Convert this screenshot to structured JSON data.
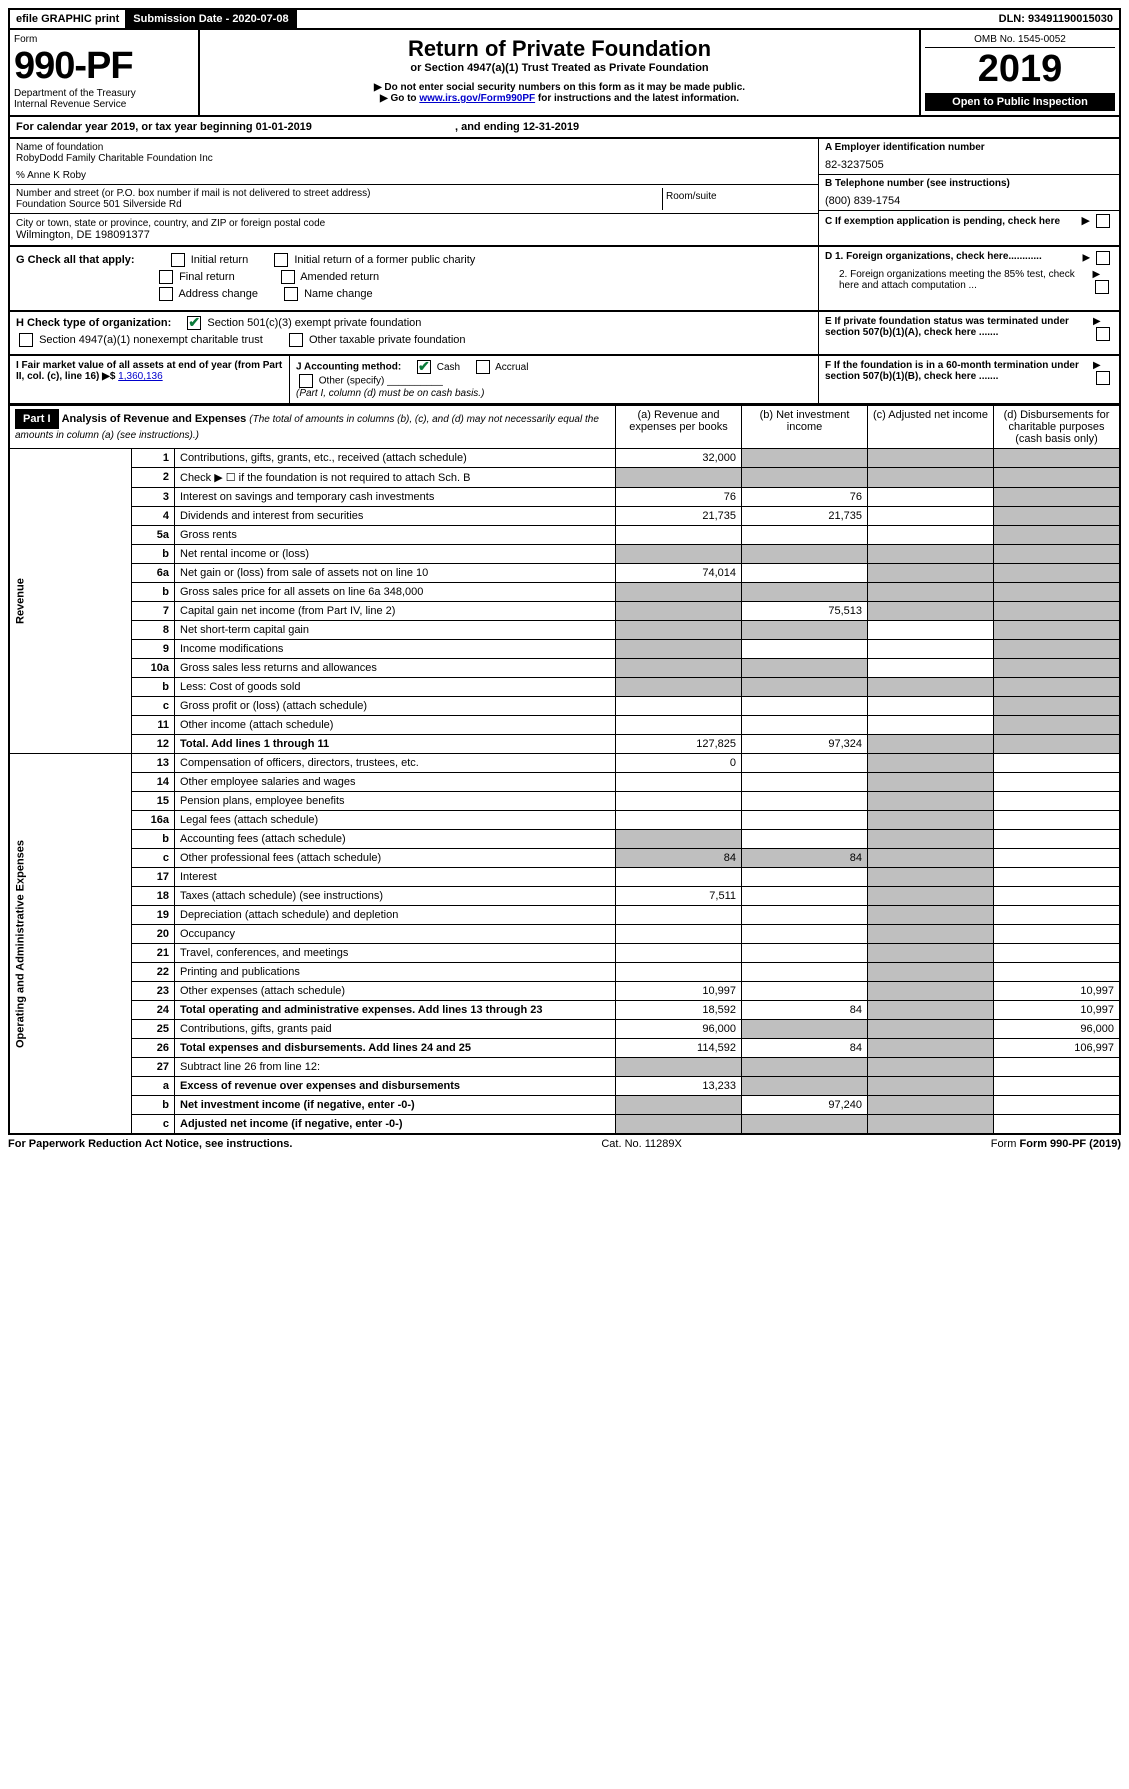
{
  "top": {
    "efile": "efile GRAPHIC print",
    "submission": "Submission Date - 2020-07-08",
    "dln": "DLN: 93491190015030"
  },
  "header": {
    "form": "Form",
    "form_no": "990-PF",
    "dept": "Department of the Treasury",
    "irs": "Internal Revenue Service",
    "title": "Return of Private Foundation",
    "subtitle": "or Section 4947(a)(1) Trust Treated as Private Foundation",
    "note1": "▶ Do not enter social security numbers on this form as it may be made public.",
    "note2": "▶ Go to ",
    "link": "www.irs.gov/Form990PF",
    "note2b": " for instructions and the latest information.",
    "omb": "OMB No. 1545-0052",
    "year": "2019",
    "open": "Open to Public Inspection"
  },
  "cal": {
    "text": "For calendar year 2019, or tax year beginning 01-01-2019",
    "end": ", and ending 12-31-2019"
  },
  "name": {
    "label": "Name of foundation",
    "value": "RobyDodd Family Charitable Foundation Inc",
    "care": "% Anne K Roby"
  },
  "addr": {
    "label": "Number and street (or P.O. box number if mail is not delivered to street address)",
    "value": "Foundation Source 501 Silverside Rd",
    "room": "Room/suite"
  },
  "city": {
    "label": "City or town, state or province, country, and ZIP or foreign postal code",
    "value": "Wilmington, DE  198091377"
  },
  "a": {
    "label": "A Employer identification number",
    "value": "82-3237505"
  },
  "b": {
    "label": "B Telephone number (see instructions)",
    "value": "(800) 839-1754"
  },
  "c": {
    "label": "C If exemption application is pending, check here"
  },
  "d1": {
    "label": "D 1. Foreign organizations, check here............"
  },
  "d2": {
    "label": "2. Foreign organizations meeting the 85% test, check here and attach computation ..."
  },
  "e": {
    "label": "E  If private foundation status was terminated under section 507(b)(1)(A), check here ......."
  },
  "f": {
    "label": "F  If the foundation is in a 60-month termination under section 507(b)(1)(B), check here ......."
  },
  "g": {
    "label": "G Check all that apply:",
    "opts": [
      "Initial return",
      "Initial return of a former public charity",
      "Final return",
      "Amended return",
      "Address change",
      "Name change"
    ]
  },
  "h": {
    "label": "H Check type of organization:",
    "o1": "Section 501(c)(3) exempt private foundation",
    "o2": "Section 4947(a)(1) nonexempt charitable trust",
    "o3": "Other taxable private foundation"
  },
  "i": {
    "label": "I Fair market value of all assets at end of year (from Part II, col. (c), line 16) ▶$ ",
    "value": "1,360,136"
  },
  "j": {
    "label": "J Accounting method:",
    "cash": "Cash",
    "accrual": "Accrual",
    "other": "Other (specify)",
    "note": "(Part I, column (d) must be on cash basis.)"
  },
  "part1": {
    "label": "Part I",
    "title": "Analysis of Revenue and Expenses",
    "note": "(The total of amounts in columns (b), (c), and (d) may not necessarily equal the amounts in column (a) (see instructions).)",
    "cols": {
      "a": "(a)  Revenue and expenses per books",
      "b": "(b)  Net investment income",
      "c": "(c)  Adjusted net income",
      "d": "(d)  Disbursements for charitable purposes (cash basis only)"
    }
  },
  "sections": {
    "revenue": "Revenue",
    "expenses": "Operating and Administrative Expenses"
  },
  "rows": [
    {
      "n": "1",
      "d": "Contributions, gifts, grants, etc., received (attach schedule)",
      "a": "32,000"
    },
    {
      "n": "2",
      "d": "Check ▶ ☐ if the foundation is not required to attach Sch. B"
    },
    {
      "n": "3",
      "d": "Interest on savings and temporary cash investments",
      "a": "76",
      "b": "76"
    },
    {
      "n": "4",
      "d": "Dividends and interest from securities",
      "a": "21,735",
      "b": "21,735"
    },
    {
      "n": "5a",
      "d": "Gross rents"
    },
    {
      "n": "b",
      "d": "Net rental income or (loss)"
    },
    {
      "n": "6a",
      "d": "Net gain or (loss) from sale of assets not on line 10",
      "a": "74,014"
    },
    {
      "n": "b",
      "d": "Gross sales price for all assets on line 6a           348,000"
    },
    {
      "n": "7",
      "d": "Capital gain net income (from Part IV, line 2)",
      "b": "75,513"
    },
    {
      "n": "8",
      "d": "Net short-term capital gain"
    },
    {
      "n": "9",
      "d": "Income modifications"
    },
    {
      "n": "10a",
      "d": "Gross sales less returns and allowances"
    },
    {
      "n": "b",
      "d": "Less: Cost of goods sold"
    },
    {
      "n": "c",
      "d": "Gross profit or (loss) (attach schedule)"
    },
    {
      "n": "11",
      "d": "Other income (attach schedule)"
    },
    {
      "n": "12",
      "d": "Total. Add lines 1 through 11",
      "a": "127,825",
      "b": "97,324",
      "bold": true
    }
  ],
  "exp_rows": [
    {
      "n": "13",
      "d": "Compensation of officers, directors, trustees, etc.",
      "a": "0"
    },
    {
      "n": "14",
      "d": "Other employee salaries and wages"
    },
    {
      "n": "15",
      "d": "Pension plans, employee benefits"
    },
    {
      "n": "16a",
      "d": "Legal fees (attach schedule)"
    },
    {
      "n": "b",
      "d": "Accounting fees (attach schedule)"
    },
    {
      "n": "c",
      "d": "Other professional fees (attach schedule)",
      "a": "84",
      "b": "84"
    },
    {
      "n": "17",
      "d": "Interest"
    },
    {
      "n": "18",
      "d": "Taxes (attach schedule) (see instructions)",
      "a": "7,511"
    },
    {
      "n": "19",
      "d": "Depreciation (attach schedule) and depletion"
    },
    {
      "n": "20",
      "d": "Occupancy"
    },
    {
      "n": "21",
      "d": "Travel, conferences, and meetings"
    },
    {
      "n": "22",
      "d": "Printing and publications"
    },
    {
      "n": "23",
      "d": "Other expenses (attach schedule)",
      "a": "10,997",
      "dd": "10,997"
    },
    {
      "n": "24",
      "d": "Total operating and administrative expenses. Add lines 13 through 23",
      "a": "18,592",
      "b": "84",
      "dd": "10,997",
      "bold": true
    },
    {
      "n": "25",
      "d": "Contributions, gifts, grants paid",
      "a": "96,000",
      "dd": "96,000"
    },
    {
      "n": "26",
      "d": "Total expenses and disbursements. Add lines 24 and 25",
      "a": "114,592",
      "b": "84",
      "dd": "106,997",
      "bold": true
    },
    {
      "n": "27",
      "d": "Subtract line 26 from line 12:"
    },
    {
      "n": "a",
      "d": "Excess of revenue over expenses and disbursements",
      "a": "13,233",
      "bold": true
    },
    {
      "n": "b",
      "d": "Net investment income (if negative, enter -0-)",
      "b": "97,240",
      "bold": true
    },
    {
      "n": "c",
      "d": "Adjusted net income (if negative, enter -0-)",
      "bold": true
    }
  ],
  "footer": {
    "left": "For Paperwork Reduction Act Notice, see instructions.",
    "mid": "Cat. No. 11289X",
    "right": "Form 990-PF (2019)"
  },
  "colors": {
    "link": "#0000cc",
    "check": "#0a7a3a",
    "grey": "#bfbfbf"
  }
}
